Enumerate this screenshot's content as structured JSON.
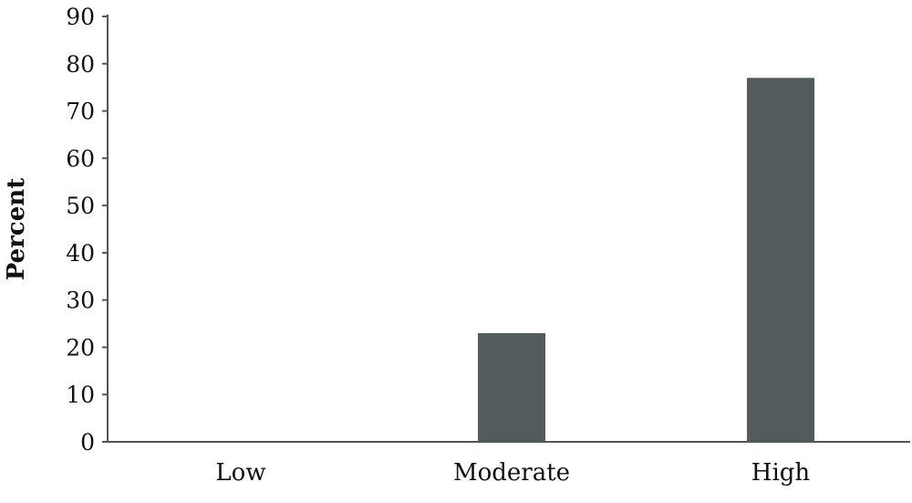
{
  "chart_data": {
    "type": "bar",
    "categories": [
      "Low",
      "Moderate",
      "High"
    ],
    "values": [
      0,
      23,
      77
    ],
    "xlabel": "",
    "ylabel": "Percent",
    "ylim": [
      0,
      90
    ],
    "yticks": [
      "0",
      "10",
      "20",
      "30",
      "40",
      "50",
      "60",
      "70",
      "80",
      "90"
    ],
    "grid": false,
    "bar_color": "#525c5c",
    "axis_color": "#555555"
  }
}
